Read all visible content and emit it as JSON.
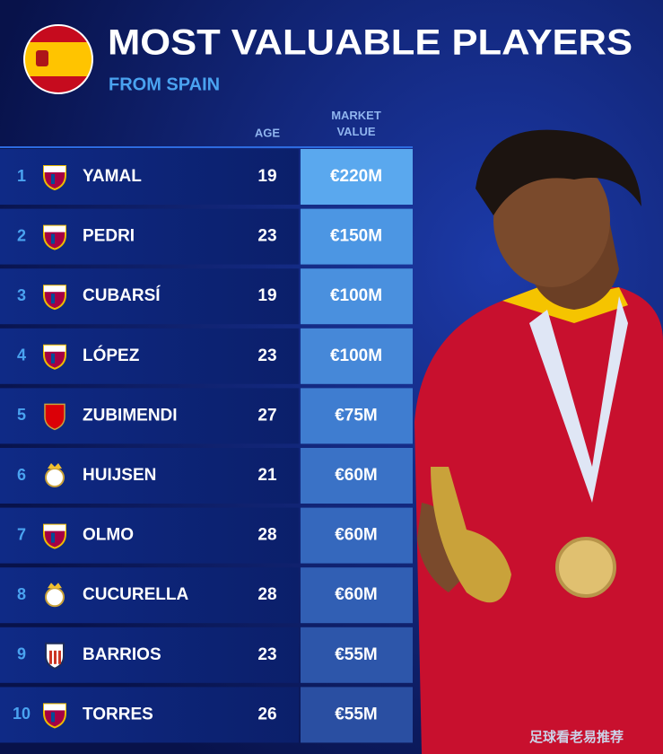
{
  "header": {
    "title": "MOST VALUABLE PLAYERS",
    "subtitle": "FROM SPAIN"
  },
  "table": {
    "columns": [
      "AGE",
      "MARKET VALUE"
    ],
    "rows": [
      [
        1,
        "YAMAL",
        19,
        "€220M"
      ],
      [
        2,
        "PEDRI",
        23,
        "€150M"
      ],
      [
        3,
        "CUBARSÍ",
        19,
        "€100M"
      ],
      [
        4,
        "LÓPEZ",
        23,
        "€100M"
      ],
      [
        5,
        "ZUBIMENDI",
        27,
        "€75M"
      ],
      [
        6,
        "HUIJSEN",
        21,
        "€60M"
      ],
      [
        7,
        "OLMO",
        28,
        "€60M"
      ],
      [
        8,
        "CUCURELLA",
        28,
        "€60M"
      ],
      [
        9,
        "BARRIOS",
        23,
        "€55M"
      ],
      [
        10,
        "TORRES",
        26,
        "€55M"
      ]
    ]
  },
  "watermark": "足球看老易推荐"
}
